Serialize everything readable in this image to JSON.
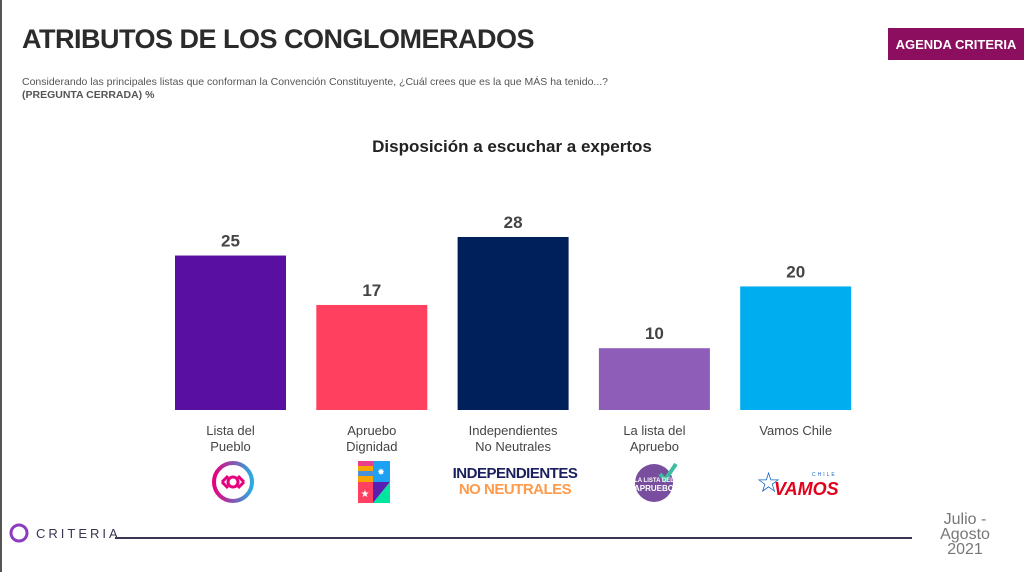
{
  "header": {
    "title": "ATRIBUTOS DE LOS CONGLOMERADOS",
    "subtitle": "Considerando las principales listas que conforman la Convención Constituyente, ¿Cuál crees que es la que MÁS ha tenido...?",
    "subtitle_note": "(PREGUNTA CERRADA) %",
    "badge": "AGENDA CRITERIA"
  },
  "chart_data": {
    "type": "bar",
    "title": "Disposición a escuchar a expertos",
    "categories": [
      "Lista del Pueblo",
      "Apruebo Dignidad",
      "Independientes No Neutrales",
      "La lista del Apruebo",
      "Vamos Chile"
    ],
    "category_lines": [
      [
        "Lista del",
        "Pueblo"
      ],
      [
        "Apruebo",
        "Dignidad"
      ],
      [
        "Independientes",
        "No Neutrales"
      ],
      [
        "La lista del",
        "Apruebo"
      ],
      [
        "Vamos Chile",
        ""
      ]
    ],
    "values": [
      25,
      17,
      28,
      10,
      20
    ],
    "colors": [
      "#5a0fa3",
      "#ff405e",
      "#00205b",
      "#8e5db8",
      "#00aeef"
    ],
    "ylim": [
      0,
      30
    ],
    "grid": false
  },
  "logos": [
    "lista-del-pueblo",
    "apruebo-dignidad",
    "INDEPENDIENTES NO NEUTRALES",
    "LA LISTA DEL APRUEBO",
    "CHILE VAMOS"
  ],
  "footer": {
    "brand": "CRITERIA",
    "date_lines": [
      "Julio -",
      "Agosto",
      "2021"
    ]
  }
}
